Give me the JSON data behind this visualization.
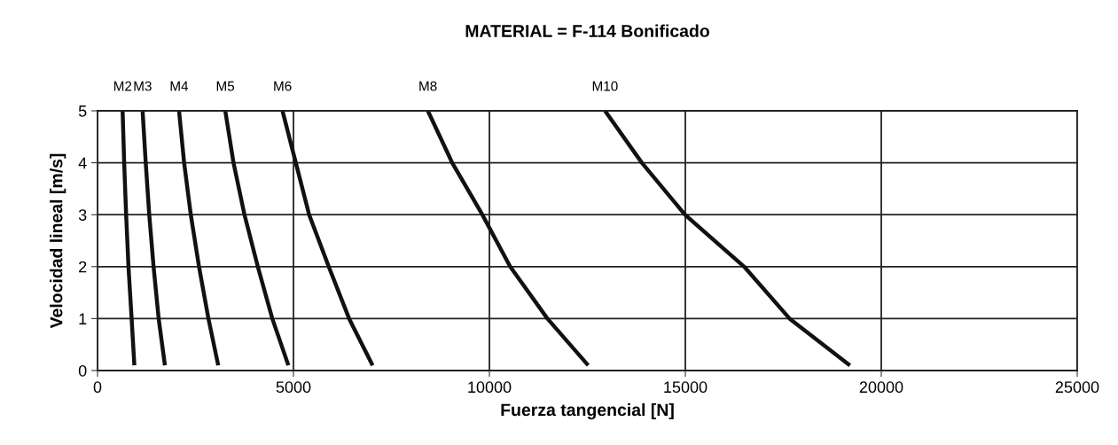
{
  "chart_data": {
    "type": "line",
    "title": "MATERIAL = F-114 Bonificado",
    "xlabel": "Fuerza tangencial [N]",
    "ylabel": "Velocidad lineal [m/s]",
    "xlim": [
      0,
      25000
    ],
    "xticks": [
      0,
      5000,
      10000,
      15000,
      20000,
      25000
    ],
    "ylim": [
      0,
      5
    ],
    "yticks": [
      0,
      1,
      2,
      3,
      4,
      5
    ],
    "grid": true,
    "legend": false,
    "marker": "none",
    "line_style": "solid",
    "series": [
      {
        "name": "M2",
        "color": "#111111",
        "x": [
          640,
          680,
          730,
          790,
          870,
          940
        ],
        "values": [
          5,
          4,
          3,
          2,
          1,
          0.1
        ]
      },
      {
        "name": "M3",
        "color": "#111111",
        "x": [
          1150,
          1230,
          1320,
          1430,
          1560,
          1720
        ],
        "values": [
          5,
          4,
          3,
          2,
          1,
          0.1
        ]
      },
      {
        "name": "M4",
        "color": "#111111",
        "x": [
          2080,
          2210,
          2380,
          2590,
          2830,
          3080
        ],
        "values": [
          5,
          4,
          3,
          2,
          1,
          0.1
        ]
      },
      {
        "name": "M5",
        "color": "#111111",
        "x": [
          3260,
          3470,
          3750,
          4090,
          4460,
          4870
        ],
        "values": [
          5,
          4,
          3,
          2,
          1,
          0.1
        ]
      },
      {
        "name": "M6",
        "color": "#111111",
        "x": [
          4720,
          5060,
          5400,
          5900,
          6420,
          7020
        ],
        "values": [
          5,
          4,
          3,
          2,
          1,
          0.1
        ]
      },
      {
        "name": "M8",
        "color": "#111111",
        "x": [
          8430,
          9050,
          9820,
          10530,
          11480,
          12520
        ],
        "values": [
          5,
          4,
          3,
          2,
          1,
          0.1
        ]
      },
      {
        "name": "M10",
        "color": "#111111",
        "x": [
          12950,
          13890,
          14990,
          16500,
          17660,
          19200
        ],
        "values": [
          5,
          4,
          3,
          2,
          1,
          0.1
        ]
      }
    ]
  }
}
